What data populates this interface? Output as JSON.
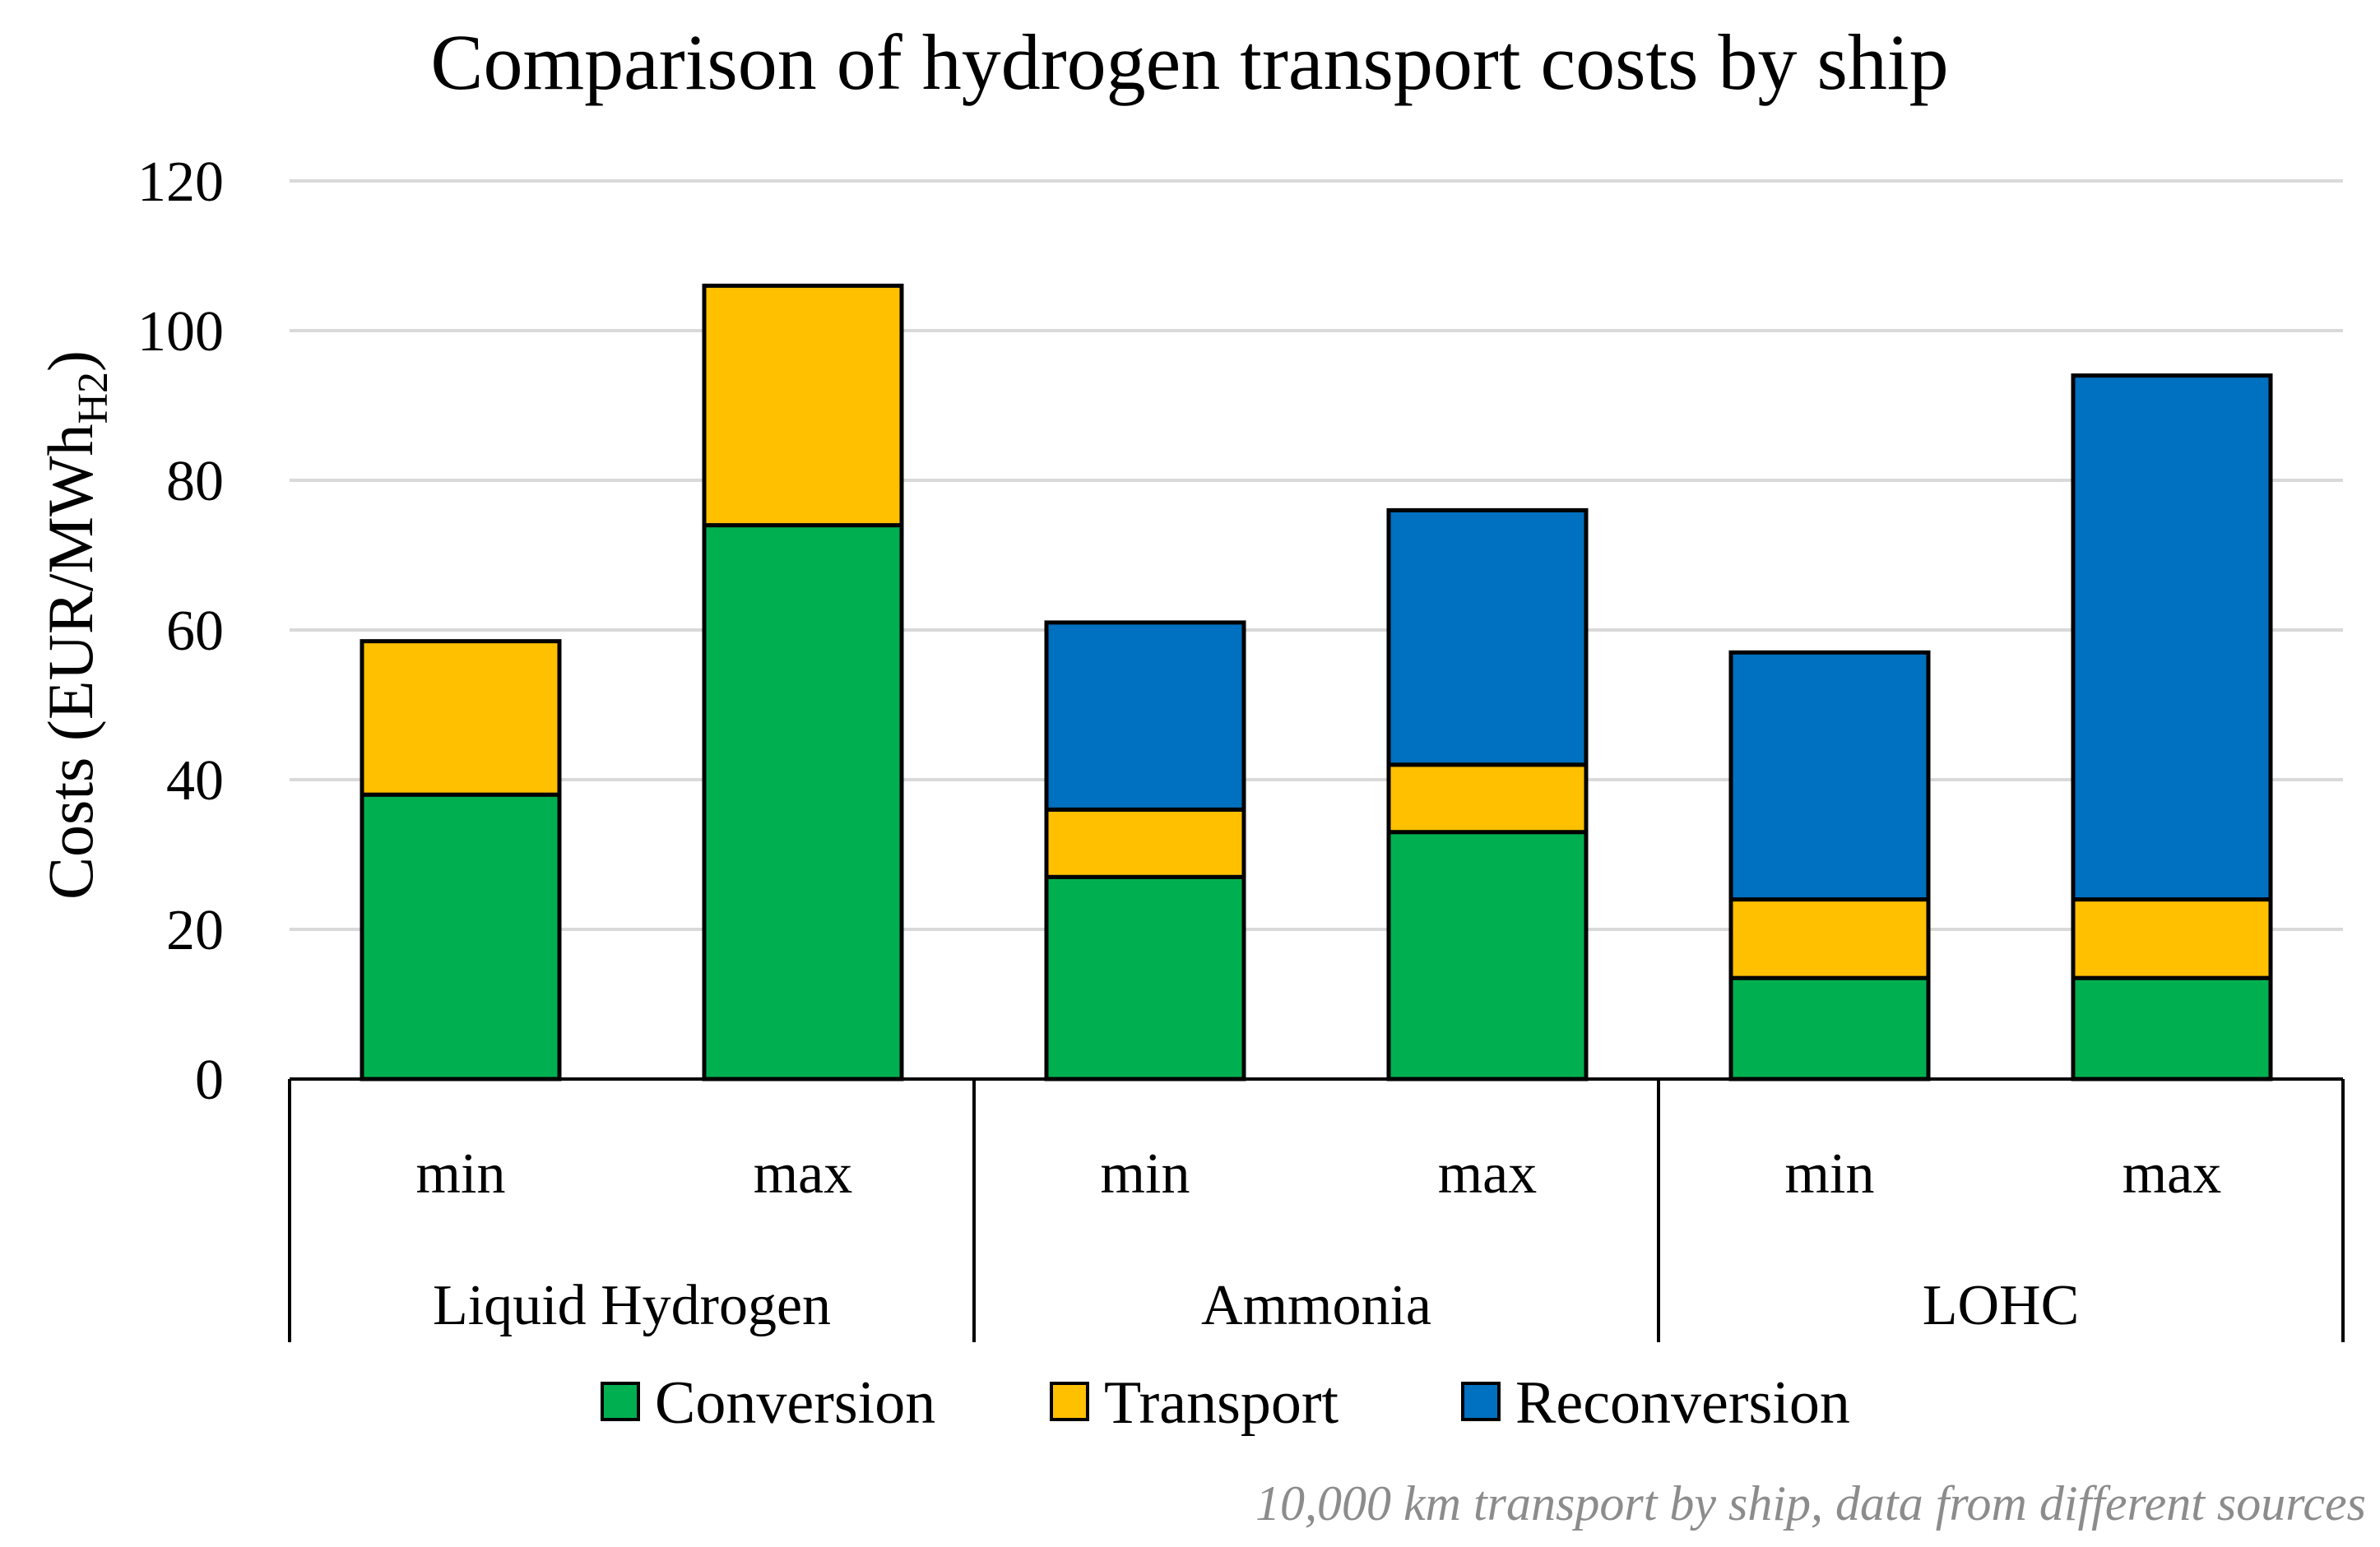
{
  "chart_data": {
    "type": "bar",
    "stacked": true,
    "title": "Comparison of hydrogen transport costs by ship",
    "ylabel": {
      "main": "Costs (EUR/MWh",
      "subscript": "H2",
      "close": ")"
    },
    "xlabel": "",
    "ylim": [
      0,
      120
    ],
    "yticks": [
      0,
      20,
      40,
      60,
      80,
      100,
      120
    ],
    "grid": true,
    "legend_position": "bottom",
    "groups": [
      {
        "label": "Liquid Hydrogen",
        "categories": [
          "min",
          "max"
        ]
      },
      {
        "label": "Ammonia",
        "categories": [
          "min",
          "max"
        ]
      },
      {
        "label": "LOHC",
        "categories": [
          "min",
          "max"
        ]
      }
    ],
    "categories": [
      "Liquid Hydrogen – min",
      "Liquid Hydrogen – max",
      "Ammonia – min",
      "Ammonia – max",
      "LOHC – min",
      "LOHC – max"
    ],
    "series": [
      {
        "name": "Conversion",
        "color": "#00b050",
        "values": [
          38,
          74,
          27,
          33,
          13.5,
          13.5
        ]
      },
      {
        "name": "Transport",
        "color": "#ffc000",
        "values": [
          20.5,
          32,
          9,
          9,
          10.5,
          10.5
        ]
      },
      {
        "name": "Reconversion",
        "color": "#0070c0",
        "values": [
          0,
          0,
          25,
          34,
          33,
          70
        ]
      }
    ],
    "footnote": "10,000 km transport by ship, data from different sources"
  }
}
